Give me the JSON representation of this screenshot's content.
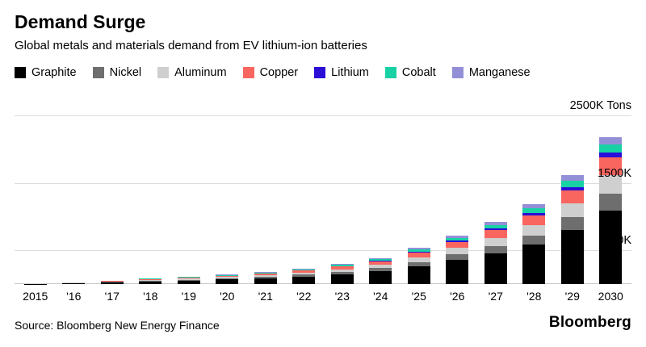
{
  "header": {
    "title": "Demand Surge",
    "subtitle": "Global metals and materials demand from EV lithium-ion batteries"
  },
  "footer": {
    "source": "Source: Bloomberg New Energy Finance",
    "brand": "Bloomberg"
  },
  "chart_data": {
    "type": "bar",
    "stacked": true,
    "unit": "K Tons",
    "title": "Demand Surge",
    "subtitle": "Global metals and materials demand from EV lithium-ion batteries",
    "legend_position": "top",
    "grid": true,
    "categories": [
      "2015",
      "'16",
      "'17",
      "'18",
      "'19",
      "'20",
      "'21",
      "'22",
      "'23",
      "'24",
      "'25",
      "'26",
      "'27",
      "'28",
      "'29",
      "2030"
    ],
    "series": [
      {
        "name": "Graphite",
        "color": "#000000",
        "values": [
          8,
          18,
          30,
          45,
          58,
          73,
          93,
          118,
          153,
          198,
          272,
          365,
          465,
          595,
          812,
          1095
        ]
      },
      {
        "name": "Nickel",
        "color": "#6e6e6e",
        "values": [
          2,
          4,
          7,
          10,
          13,
          17,
          21,
          27,
          35,
          45,
          63,
          84,
          107,
          137,
          187,
          252
        ]
      },
      {
        "name": "Aluminum",
        "color": "#cfcfcf",
        "values": [
          2,
          5,
          8,
          12,
          15,
          19,
          24,
          31,
          40,
          51,
          71,
          95,
          121,
          155,
          211,
          285
        ]
      },
      {
        "name": "Copper",
        "color": "#f9655f",
        "values": [
          2,
          4,
          7,
          11,
          14,
          17,
          22,
          28,
          37,
          48,
          65,
          88,
          112,
          143,
          195,
          263
        ]
      },
      {
        "name": "Lithium",
        "color": "#2a0ed8",
        "values": [
          1,
          1,
          2,
          3,
          3,
          4,
          6,
          7,
          9,
          12,
          16,
          22,
          28,
          36,
          49,
          66
        ]
      },
      {
        "name": "Cobalt",
        "color": "#18d1a5",
        "values": [
          1,
          2,
          3,
          5,
          6,
          8,
          10,
          13,
          17,
          22,
          30,
          40,
          51,
          65,
          89,
          120
        ]
      },
      {
        "name": "Manganese",
        "color": "#938fd7",
        "values": [
          1,
          2,
          3,
          4,
          6,
          7,
          9,
          12,
          15,
          20,
          27,
          37,
          47,
          60,
          81,
          110
        ]
      }
    ],
    "y_axis": {
      "max": 2500,
      "ticks": [
        {
          "value": 500,
          "label": "500K"
        },
        {
          "value": 1500,
          "label": "1500K"
        },
        {
          "value": 2500,
          "label": "2500K Tons"
        }
      ]
    },
    "x_axis_first_label": "2015",
    "x_axis_last_label": "2030"
  }
}
